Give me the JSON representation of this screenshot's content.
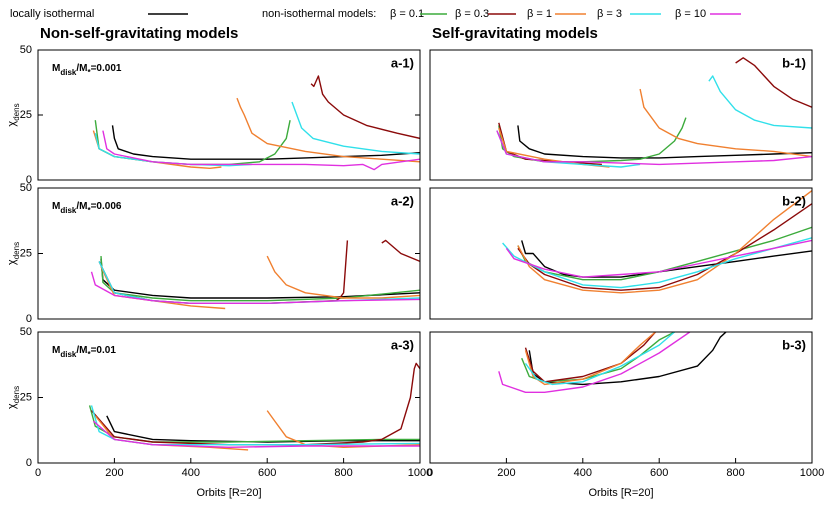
{
  "legend": [
    {
      "name": "locally isothermal",
      "color": "#000000"
    },
    {
      "name": "β = 0.1",
      "color": "#3cab3c"
    },
    {
      "name": "β = 0.3",
      "color": "#8b0a0a"
    },
    {
      "name": "β = 1",
      "color": "#f08030"
    },
    {
      "name": "β = 3",
      "color": "#30e0ea"
    },
    {
      "name": "β = 10",
      "color": "#e030e0"
    }
  ],
  "legend_title": "non-isothermal models:",
  "column_titles": [
    "Non-self-gravitating models",
    "Self-gravitating models"
  ],
  "chart_data": [
    {
      "type": "line",
      "label": "a-1)",
      "annotation": [
        "M",
        "disk",
        "/M",
        "*",
        "=0.001"
      ],
      "ylabel": [
        "χ",
        "dens"
      ],
      "xlim": [
        0,
        1000
      ],
      "ylim": [
        0,
        50
      ],
      "yticks": [
        0,
        25,
        50
      ],
      "series": [
        {
          "color": "#000000",
          "x": [
            195,
            200,
            210,
            250,
            300,
            400,
            500,
            600,
            700,
            800,
            900,
            1000
          ],
          "values": [
            21,
            16,
            12,
            10,
            9,
            8,
            8,
            8,
            8.5,
            9,
            9.5,
            10.5
          ]
        },
        {
          "color": "#3cab3c",
          "x": [
            150,
            160,
            200,
            300,
            400,
            500,
            580,
            620,
            650,
            660
          ],
          "values": [
            23,
            12,
            9,
            7,
            6,
            6,
            7,
            10,
            16,
            23
          ]
        },
        {
          "color": "#8b0a0a",
          "x": [
            715,
            722,
            734,
            745,
            760,
            800,
            860,
            940,
            1000
          ],
          "values": [
            37,
            36,
            40,
            33,
            30,
            25,
            21,
            18,
            16
          ]
        },
        {
          "color": "#f08030",
          "x": [
            145,
            160,
            200,
            300,
            400,
            450,
            480,
            null,
            521,
            530,
            540,
            560,
            600,
            700,
            800,
            900,
            1000
          ],
          "values": [
            19,
            12,
            9,
            7,
            5,
            4.5,
            5,
            null,
            31.5,
            28,
            25,
            18,
            14,
            11,
            9,
            8,
            7
          ]
        },
        {
          "color": "#30e0ea",
          "x": [
            150,
            160,
            200,
            300,
            400,
            500,
            560,
            null,
            665,
            690,
            720,
            800,
            900,
            1000
          ],
          "values": [
            18,
            12,
            9,
            7,
            6,
            5.5,
            6,
            null,
            30,
            20,
            16,
            13,
            11,
            10
          ]
        },
        {
          "color": "#e030e0",
          "x": [
            170,
            180,
            200,
            300,
            400,
            500,
            600,
            700,
            800,
            850,
            880,
            900,
            950,
            1000
          ],
          "values": [
            19,
            12,
            10,
            7,
            6,
            6,
            6,
            6,
            5.5,
            6,
            4,
            6,
            7,
            8
          ]
        }
      ]
    },
    {
      "type": "line",
      "label": "b-1)",
      "xlim": [
        0,
        1000
      ],
      "ylim": [
        0,
        50
      ],
      "series": [
        {
          "color": "#000000",
          "x": [
            230,
            235,
            260,
            300,
            400,
            500,
            600,
            700,
            800,
            900,
            1000
          ],
          "values": [
            21,
            15,
            12,
            10,
            9,
            8.5,
            8.5,
            9,
            9.5,
            10,
            10.5
          ]
        },
        {
          "color": "#3cab3c",
          "x": [
            180,
            190,
            220,
            300,
            400,
            500,
            550,
            600,
            640,
            660,
            670
          ],
          "values": [
            21,
            12,
            9,
            7,
            7,
            7.5,
            8,
            10,
            15,
            20,
            24
          ]
        },
        {
          "color": "#8b0a0a",
          "x": [
            180,
            200,
            250,
            350,
            450,
            null,
            800,
            820,
            850,
            900,
            950,
            1000
          ],
          "values": [
            22,
            11,
            8,
            7,
            6,
            null,
            45,
            47,
            44,
            36,
            31,
            28
          ]
        },
        {
          "color": "#f08030",
          "x": [
            180,
            200,
            300,
            400,
            470,
            null,
            550,
            560,
            600,
            650,
            700,
            800,
            900,
            1000
          ],
          "values": [
            20,
            11,
            8,
            6,
            5,
            null,
            35,
            28,
            20,
            16,
            14,
            12,
            11,
            9
          ]
        },
        {
          "color": "#30e0ea",
          "x": [
            175,
            200,
            300,
            400,
            500,
            550,
            null,
            730,
            740,
            760,
            800,
            850,
            900,
            1000
          ],
          "values": [
            19,
            10,
            7,
            6,
            5,
            6,
            null,
            38,
            40,
            34,
            27,
            23,
            21,
            20
          ]
        },
        {
          "color": "#e030e0",
          "x": [
            175,
            200,
            300,
            400,
            600,
            800,
            900,
            1000
          ],
          "values": [
            19,
            10,
            7,
            7,
            6,
            7,
            7.5,
            9
          ]
        }
      ]
    },
    {
      "type": "line",
      "label": "a-2)",
      "annotation": [
        "M",
        "disk",
        "/M",
        "*",
        "=0.006"
      ],
      "ylabel": [
        "χ",
        "dens"
      ],
      "xlim": [
        0,
        1000
      ],
      "ylim": [
        0,
        50
      ],
      "yticks": [
        0,
        25,
        50
      ],
      "series": [
        {
          "color": "#000000",
          "x": [
            165,
            170,
            200,
            300,
            400,
            600,
            800,
            1000
          ],
          "values": [
            23,
            15,
            11,
            9,
            8,
            8,
            8.5,
            10
          ]
        },
        {
          "color": "#3cab3c",
          "x": [
            165,
            170,
            200,
            300,
            400,
            600,
            800,
            1000
          ],
          "values": [
            24,
            14,
            10,
            8,
            7,
            7,
            8,
            11
          ]
        },
        {
          "color": "#8b0a0a",
          "x": [
            160,
            200,
            300,
            400,
            600,
            780,
            790,
            800,
            810,
            null,
            900,
            910,
            950,
            1000
          ],
          "values": [
            22,
            10,
            7,
            6,
            6,
            7,
            8,
            10,
            30,
            null,
            29,
            30,
            25,
            22
          ]
        },
        {
          "color": "#f08030",
          "x": [
            165,
            200,
            300,
            400,
            490,
            null,
            600,
            620,
            650,
            700,
            800,
            900,
            1000
          ],
          "values": [
            20,
            9,
            7,
            5,
            4,
            null,
            24,
            18,
            13,
            10,
            8,
            8,
            9
          ]
        },
        {
          "color": "#30e0ea",
          "x": [
            160,
            200,
            300,
            400,
            600,
            800,
            1000
          ],
          "values": [
            22,
            10,
            7,
            6,
            6,
            7,
            8
          ]
        },
        {
          "color": "#e030e0",
          "x": [
            140,
            150,
            200,
            300,
            400,
            600,
            800,
            1000
          ],
          "values": [
            18,
            13,
            9,
            7,
            6,
            6,
            7,
            7.5
          ]
        }
      ]
    },
    {
      "type": "line",
      "label": "b-2)",
      "xlim": [
        0,
        1000
      ],
      "ylim": [
        0,
        50
      ],
      "series": [
        {
          "color": "#000000",
          "x": [
            240,
            250,
            270,
            300,
            350,
            400,
            500,
            600,
            700,
            800,
            900,
            1000
          ],
          "values": [
            30,
            25,
            25,
            20,
            17,
            16,
            16,
            18,
            20,
            22,
            24,
            26
          ]
        },
        {
          "color": "#3cab3c",
          "x": [
            230,
            250,
            300,
            400,
            500,
            600,
            700,
            800,
            900,
            1000
          ],
          "values": [
            28,
            22,
            18,
            15,
            15,
            18,
            22,
            26,
            30,
            35
          ]
        },
        {
          "color": "#8b0a0a",
          "x": [
            230,
            260,
            300,
            400,
            500,
            600,
            700,
            800,
            900,
            1000
          ],
          "values": [
            27,
            21,
            17,
            12,
            11,
            12,
            17,
            25,
            34,
            44
          ]
        },
        {
          "color": "#f08030",
          "x": [
            230,
            260,
            300,
            400,
            500,
            600,
            700,
            800,
            900,
            1000
          ],
          "values": [
            28,
            20,
            15,
            11,
            10,
            11,
            15,
            25,
            38,
            49
          ]
        },
        {
          "color": "#30e0ea",
          "x": [
            190,
            220,
            300,
            400,
            500,
            600,
            700,
            800,
            900,
            1000
          ],
          "values": [
            29,
            24,
            18,
            13,
            12,
            14,
            18,
            23,
            27,
            31
          ]
        },
        {
          "color": "#e030e0",
          "x": [
            200,
            220,
            300,
            400,
            500,
            600,
            700,
            800,
            900,
            1000
          ],
          "values": [
            27,
            23,
            19,
            16,
            17,
            18,
            21,
            24,
            27,
            30
          ]
        }
      ]
    },
    {
      "type": "line",
      "label": "a-3)",
      "annotation": [
        "M",
        "disk",
        "/M",
        "*",
        "=0.01"
      ],
      "ylabel": [
        "χ",
        "dens"
      ],
      "xlabel": "Orbits [R=20]",
      "xlim": [
        0,
        1000
      ],
      "ylim": [
        0,
        50
      ],
      "yticks": [
        0,
        25,
        50
      ],
      "xticks": [
        0,
        200,
        400,
        600,
        800,
        1000
      ],
      "series": [
        {
          "color": "#000000",
          "x": [
            180,
            190,
            200,
            300,
            400,
            600,
            800,
            1000
          ],
          "values": [
            18,
            15,
            12,
            9,
            8.5,
            8,
            8.5,
            8.5
          ]
        },
        {
          "color": "#3cab3c",
          "x": [
            135,
            150,
            200,
            300,
            500,
            700,
            900,
            1000
          ],
          "values": [
            22,
            14,
            10,
            8,
            8,
            8.5,
            9,
            9
          ]
        },
        {
          "color": "#8b0a0a",
          "x": [
            140,
            200,
            300,
            500,
            700,
            850,
            900,
            950,
            975,
            985,
            990,
            1000
          ],
          "values": [
            20,
            10,
            8,
            7,
            7,
            8,
            9,
            13,
            25,
            36,
            38,
            36
          ]
        },
        {
          "color": "#f08030",
          "x": [
            150,
            200,
            300,
            450,
            550,
            null,
            600,
            620,
            650,
            700,
            800,
            1000
          ],
          "values": [
            18,
            9,
            7,
            6,
            5,
            null,
            20,
            16,
            10,
            7,
            6,
            7
          ]
        },
        {
          "color": "#30e0ea",
          "x": [
            140,
            160,
            200,
            300,
            500,
            700,
            1000
          ],
          "values": [
            22,
            12,
            9,
            7,
            7,
            7,
            7.5
          ]
        },
        {
          "color": "#e030e0",
          "x": [
            145,
            200,
            300,
            500,
            700,
            1000
          ],
          "values": [
            16,
            9,
            7,
            6,
            6.5,
            6.5
          ]
        }
      ]
    },
    {
      "type": "line",
      "label": "b-3)",
      "xlabel": "Orbits [R=20]",
      "xlim": [
        0,
        1000
      ],
      "ylim": [
        0,
        50
      ],
      "xticks": [
        0,
        200,
        400,
        600,
        800,
        1000
      ],
      "series": [
        {
          "color": "#000000",
          "x": [
            260,
            270,
            300,
            400,
            500,
            600,
            700,
            740,
            760,
            775
          ],
          "values": [
            43,
            34,
            31,
            30,
            31,
            33,
            37,
            43,
            48,
            50
          ]
        },
        {
          "color": "#3cab3c",
          "x": [
            240,
            260,
            300,
            400,
            500,
            550,
            600,
            640
          ],
          "values": [
            40,
            33,
            31,
            32,
            36,
            41,
            47,
            50
          ]
        },
        {
          "color": "#8b0a0a",
          "x": [
            250,
            270,
            300,
            400,
            500,
            560,
            590
          ],
          "values": [
            44,
            35,
            31,
            33,
            38,
            45,
            50
          ]
        },
        {
          "color": "#f08030",
          "x": [
            250,
            270,
            300,
            400,
            500,
            550,
            590
          ],
          "values": [
            43,
            33,
            30,
            32,
            38,
            45,
            50
          ]
        },
        {
          "color": "#30e0ea",
          "x": [
            250,
            280,
            320,
            400,
            500,
            600,
            640
          ],
          "values": [
            38,
            32,
            30,
            31,
            37,
            45,
            50
          ]
        },
        {
          "color": "#e030e0",
          "x": [
            180,
            190,
            210,
            250,
            300,
            400,
            500,
            600,
            680
          ],
          "values": [
            35,
            30,
            29,
            27,
            27,
            29,
            34,
            42,
            50
          ]
        }
      ]
    }
  ]
}
